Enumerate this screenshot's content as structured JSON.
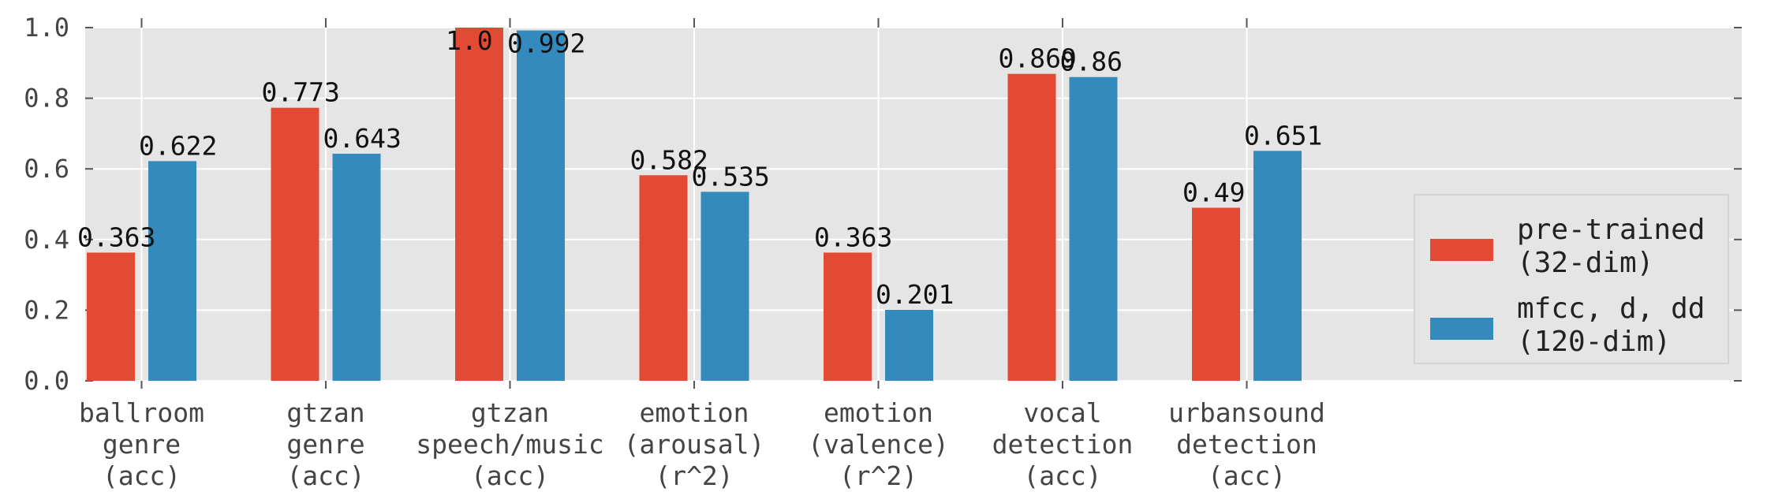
{
  "chart_data": {
    "type": "bar",
    "categories": [
      [
        "ballroom",
        "genre",
        "(acc)"
      ],
      [
        "gtzan",
        "genre",
        "(acc)"
      ],
      [
        "gtzan",
        "speech/music",
        "(acc)"
      ],
      [
        "emotion",
        "(arousal)",
        "(r^2)"
      ],
      [
        "emotion",
        "(valence)",
        "(r^2)"
      ],
      [
        "vocal",
        "detection",
        "(acc)"
      ],
      [
        "urbansound",
        "detection",
        "(acc)"
      ]
    ],
    "series": [
      {
        "name": [
          "pre-trained",
          "(32-dim)"
        ],
        "color": "#E24A33",
        "values": [
          0.363,
          0.773,
          1.0,
          0.582,
          0.363,
          0.869,
          0.49
        ],
        "labels": [
          "0.363",
          "0.773",
          "1.0",
          "0.582",
          "0.363",
          "0.869",
          "0.49"
        ]
      },
      {
        "name": [
          "mfcc, d, dd",
          "(120-dim)"
        ],
        "color": "#348ABD",
        "values": [
          0.622,
          0.643,
          0.992,
          0.535,
          0.201,
          0.86,
          0.651
        ],
        "labels": [
          "0.622",
          "0.643",
          "0.992",
          "0.535",
          "0.201",
          "0.86",
          "0.651"
        ]
      }
    ],
    "yticks": [
      "0.0",
      "0.2",
      "0.4",
      "0.6",
      "0.8",
      "1.0"
    ],
    "ylim": [
      0,
      1.0
    ],
    "grid": true,
    "legend_position": "right",
    "background": "#E5E5E5",
    "xlabel": "",
    "ylabel": "",
    "title": ""
  }
}
